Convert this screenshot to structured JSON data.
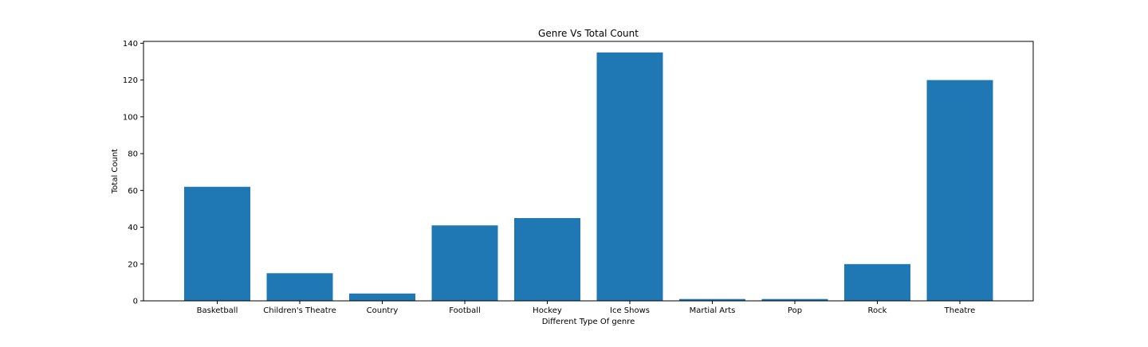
{
  "chart_data": {
    "type": "bar",
    "title": "Genre Vs Total Count",
    "xlabel": "Different Type Of genre",
    "ylabel": "Total Count",
    "categories": [
      "Basketball",
      "Children's Theatre",
      "Country",
      "Football",
      "Hockey",
      "Ice Shows",
      "Martial Arts",
      "Pop",
      "Rock",
      "Theatre"
    ],
    "values": [
      62,
      15,
      4,
      41,
      45,
      135,
      1,
      1,
      20,
      120
    ],
    "ylim": [
      0,
      141
    ],
    "yticks": [
      0,
      20,
      40,
      60,
      80,
      100,
      120,
      140
    ],
    "grid": false,
    "bar_color": "#1f77b4"
  }
}
